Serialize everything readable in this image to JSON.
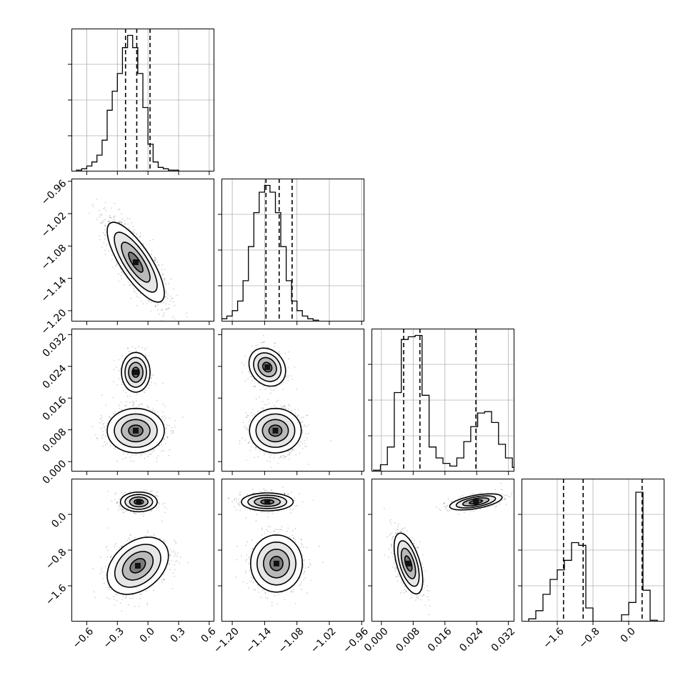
{
  "chart_data": {
    "type": "corner",
    "parameters": 4,
    "grid": true,
    "axes": [
      {
        "range": [
          -0.75,
          0.65
        ],
        "ticks": [
          -0.6,
          -0.3,
          0.0,
          0.3,
          0.6
        ],
        "tick_labels": [
          "−0.6",
          "−0.3",
          "0.0",
          "0.3",
          "0.6"
        ]
      },
      {
        "range": [
          -1.22,
          -0.955
        ],
        "ticks": [
          -1.2,
          -1.14,
          -1.08,
          -1.02,
          -0.96
        ],
        "tick_labels": [
          "−1.20",
          "−1.14",
          "−1.08",
          "−1.02",
          "−0.96"
        ]
      },
      {
        "range": [
          -0.0025,
          0.0335
        ],
        "ticks": [
          0.0,
          0.008,
          0.016,
          0.024,
          0.032
        ],
        "tick_labels": [
          "0.000",
          "0.008",
          "0.016",
          "0.024",
          "0.032"
        ]
      },
      {
        "range": [
          -2.4,
          0.8
        ],
        "ticks": [
          -1.6,
          -0.8,
          0.0
        ],
        "tick_labels": [
          "−1.6",
          "−0.8",
          "0.0"
        ]
      }
    ],
    "histograms": [
      {
        "param": 0,
        "ymax": 1.0,
        "quantiles": [
          -0.22,
          -0.11,
          0.02
        ],
        "bins_start": -0.7,
        "bin_width": 0.05,
        "counts": [
          0.01,
          0.02,
          0.04,
          0.07,
          0.12,
          0.23,
          0.45,
          0.59,
          0.72,
          0.91,
          1.0,
          0.91,
          0.72,
          0.47,
          0.2,
          0.07,
          0.03,
          0.02,
          0.01,
          0.01,
          0.0,
          0.0,
          0.0,
          0.0,
          0.0,
          0.0,
          0.0
        ]
      },
      {
        "param": 1,
        "ymax": 1.0,
        "quantiles": [
          -1.1375,
          -1.113,
          -1.089
        ],
        "bins_start": -1.22,
        "bin_width": 0.01,
        "counts": [
          0.02,
          0.04,
          0.08,
          0.15,
          0.3,
          0.55,
          0.8,
          0.95,
          1.0,
          0.95,
          0.8,
          0.55,
          0.3,
          0.15,
          0.08,
          0.04,
          0.02,
          0.01,
          0.0,
          0.0,
          0.0,
          0.0,
          0.0,
          0.0,
          0.0,
          0.0
        ]
      },
      {
        "param": 2,
        "ymax": 1.0,
        "quantiles": [
          0.0056,
          0.0097,
          0.0238
        ],
        "bins_start": -0.002,
        "bin_width": 0.00175,
        "counts": [
          0.01,
          0.05,
          0.18,
          0.58,
          0.97,
          0.99,
          1.0,
          0.56,
          0.18,
          0.1,
          0.06,
          0.04,
          0.1,
          0.22,
          0.33,
          0.43,
          0.44,
          0.36,
          0.2,
          0.1,
          0.03
        ]
      },
      {
        "param": 3,
        "ymax": 1.0,
        "quantiles": [
          -1.46,
          -1.02,
          0.3
        ],
        "bins_start": -2.4,
        "bin_width": 0.16,
        "counts": [
          0.0,
          0.02,
          0.08,
          0.2,
          0.31,
          0.38,
          0.45,
          0.58,
          0.56,
          0.1,
          0.0,
          0.0,
          0.0,
          0.0,
          0.05,
          0.14,
          0.95,
          0.23,
          0.01,
          0.0
        ]
      }
    ],
    "density_panels": [
      {
        "x_param": 0,
        "y_param": 1,
        "modes": [
          {
            "cx": -0.12,
            "cy": -1.11,
            "sx": 0.14,
            "sy": 0.037,
            "rho": -0.78,
            "weight": 1.0
          }
        ]
      },
      {
        "x_param": 0,
        "y_param": 2,
        "modes": [
          {
            "cx": -0.12,
            "cy": 0.0225,
            "sx": 0.07,
            "sy": 0.0025,
            "rho": 0.0,
            "weight": 0.4
          },
          {
            "cx": -0.12,
            "cy": 0.0078,
            "sx": 0.14,
            "sy": 0.0028,
            "rho": 0.0,
            "weight": 1.0
          }
        ]
      },
      {
        "x_param": 0,
        "y_param": 3,
        "modes": [
          {
            "cx": -0.09,
            "cy": 0.28,
            "sx": 0.09,
            "sy": 0.11,
            "rho": 0.0,
            "weight": 0.6
          },
          {
            "cx": -0.1,
            "cy": -1.15,
            "sx": 0.15,
            "sy": 0.32,
            "rho": 0.35,
            "weight": 1.0
          }
        ]
      },
      {
        "x_param": 1,
        "y_param": 2,
        "modes": [
          {
            "cx": -1.135,
            "cy": 0.0238,
            "sx": 0.017,
            "sy": 0.0024,
            "rho": -0.2,
            "weight": 0.4
          },
          {
            "cx": -1.12,
            "cy": 0.0078,
            "sx": 0.024,
            "sy": 0.0028,
            "rho": 0.0,
            "weight": 1.0
          }
        ]
      },
      {
        "x_param": 1,
        "y_param": 3,
        "modes": [
          {
            "cx": -1.135,
            "cy": 0.28,
            "sx": 0.024,
            "sy": 0.1,
            "rho": 0.0,
            "weight": 0.6
          },
          {
            "cx": -1.118,
            "cy": -1.1,
            "sx": 0.024,
            "sy": 0.32,
            "rho": 0.0,
            "weight": 1.0
          }
        ]
      },
      {
        "x_param": 2,
        "y_param": 3,
        "modes": [
          {
            "cx": 0.0238,
            "cy": 0.28,
            "sx": 0.0033,
            "sy": 0.09,
            "rho": 0.55,
            "weight": 0.6
          },
          {
            "cx": 0.0068,
            "cy": -1.1,
            "sx": 0.0018,
            "sy": 0.34,
            "rho": -0.55,
            "weight": 1.0
          }
        ]
      }
    ]
  }
}
